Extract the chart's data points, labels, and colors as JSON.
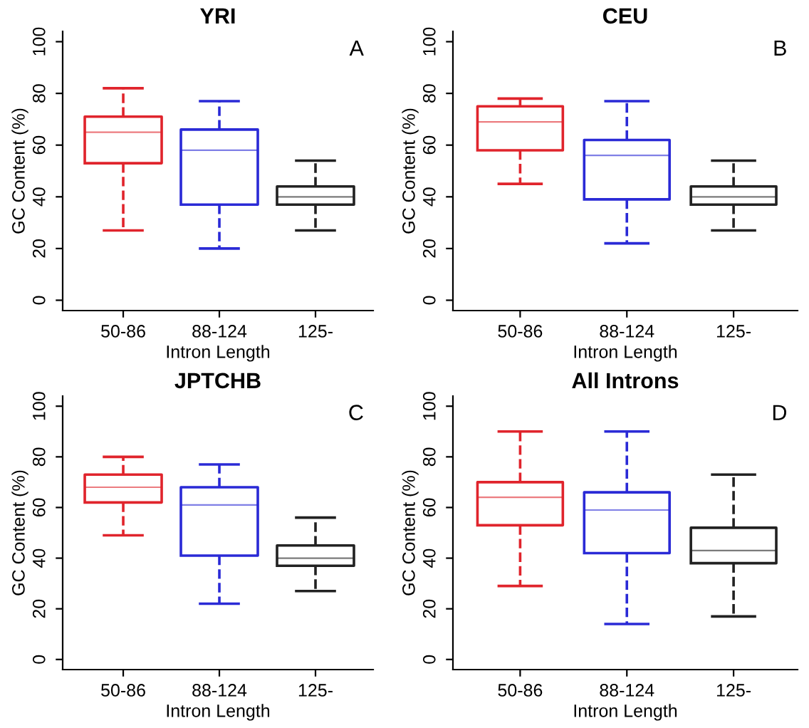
{
  "chart_data": [
    {
      "type": "box",
      "title": "YRI",
      "annotations": [
        "A"
      ],
      "xlabel": "Intron Length",
      "ylabel": "GC Content (%)",
      "categories": [
        "50-86",
        "88-124",
        "125-"
      ],
      "colors": [
        "#e0242c",
        "#2a2ad6",
        "#222222"
      ],
      "ylim": [
        -4,
        104
      ],
      "yticks": [
        0,
        20,
        40,
        60,
        80,
        100
      ],
      "grid": false,
      "line_style": "dashed",
      "boxes": [
        {
          "low": 27,
          "q1": 53,
          "median": 65,
          "q3": 71,
          "high": 82
        },
        {
          "low": 20,
          "q1": 37,
          "median": 58,
          "q3": 66,
          "high": 77
        },
        {
          "low": 27,
          "q1": 37,
          "median": 40,
          "q3": 44,
          "high": 54
        }
      ]
    },
    {
      "type": "box",
      "title": "CEU",
      "annotations": [
        "B"
      ],
      "xlabel": "Intron Length",
      "ylabel": "GC Content (%)",
      "categories": [
        "50-86",
        "88-124",
        "125-"
      ],
      "colors": [
        "#e0242c",
        "#2a2ad6",
        "#222222"
      ],
      "ylim": [
        -4,
        104
      ],
      "yticks": [
        0,
        20,
        40,
        60,
        80,
        100
      ],
      "grid": false,
      "line_style": "dashed",
      "boxes": [
        {
          "low": 45,
          "q1": 58,
          "median": 69,
          "q3": 75,
          "high": 78
        },
        {
          "low": 22,
          "q1": 39,
          "median": 56,
          "q3": 62,
          "high": 77
        },
        {
          "low": 27,
          "q1": 37,
          "median": 40,
          "q3": 44,
          "high": 54
        }
      ]
    },
    {
      "type": "box",
      "title": "JPTCHB",
      "annotations": [
        "C"
      ],
      "xlabel": "Intron Length",
      "ylabel": "GC Content (%)",
      "categories": [
        "50-86",
        "88-124",
        "125-"
      ],
      "colors": [
        "#e0242c",
        "#2a2ad6",
        "#222222"
      ],
      "ylim": [
        -4,
        104
      ],
      "yticks": [
        0,
        20,
        40,
        60,
        80,
        100
      ],
      "grid": false,
      "line_style": "dashed",
      "boxes": [
        {
          "low": 49,
          "q1": 62,
          "median": 68,
          "q3": 73,
          "high": 80
        },
        {
          "low": 22,
          "q1": 41,
          "median": 61,
          "q3": 68,
          "high": 77
        },
        {
          "low": 27,
          "q1": 37,
          "median": 40,
          "q3": 45,
          "high": 56
        }
      ]
    },
    {
      "type": "box",
      "title": "All Introns",
      "annotations": [
        "D"
      ],
      "xlabel": "Intron Length",
      "ylabel": "GC Content (%)",
      "categories": [
        "50-86",
        "88-124",
        "125-"
      ],
      "colors": [
        "#e0242c",
        "#2a2ad6",
        "#222222"
      ],
      "ylim": [
        -4,
        104
      ],
      "yticks": [
        0,
        20,
        40,
        60,
        80,
        100
      ],
      "grid": false,
      "line_style": "dashed",
      "boxes": [
        {
          "low": 29,
          "q1": 53,
          "median": 64,
          "q3": 70,
          "high": 90
        },
        {
          "low": 14,
          "q1": 42,
          "median": 59,
          "q3": 66,
          "high": 90
        },
        {
          "low": 17,
          "q1": 38,
          "median": 43,
          "q3": 52,
          "high": 73
        }
      ]
    }
  ]
}
